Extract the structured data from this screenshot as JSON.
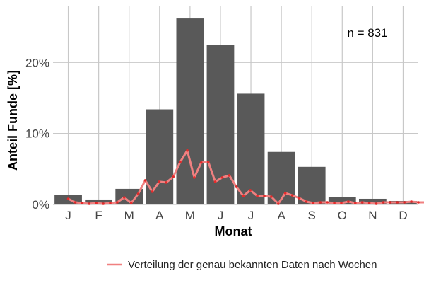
{
  "chart_data": {
    "type": "bar",
    "xlabel": "Monat",
    "ylabel": "Anteil Funde [%]",
    "ylim": [
      0,
      28
    ],
    "yticks": [
      0,
      10,
      20
    ],
    "ytick_labels": [
      "0%",
      "10%",
      "20%"
    ],
    "categories": [
      "J",
      "F",
      "M",
      "A",
      "M",
      "J",
      "J",
      "A",
      "S",
      "O",
      "N",
      "D"
    ],
    "series": [
      {
        "type": "bar",
        "values": [
          1.3,
          0.7,
          2.2,
          13.4,
          26.2,
          22.5,
          15.6,
          7.4,
          5.3,
          1.0,
          0.8,
          0.5
        ]
      },
      {
        "type": "line",
        "name": "Verteilung der genau bekannten Daten nach Wochen",
        "x": [
          0.5,
          0.73,
          0.96,
          1.19,
          1.42,
          1.65,
          1.88,
          2.11,
          2.34,
          2.57,
          2.8,
          3.03,
          3.26,
          3.49,
          3.72,
          3.95,
          4.18,
          4.41,
          4.64,
          4.87,
          5.1,
          5.33,
          5.56,
          5.79,
          6.02,
          6.25,
          6.48,
          6.71,
          6.94,
          7.17,
          7.4,
          7.63,
          7.86,
          8.09,
          8.32,
          8.55,
          8.78,
          9.01,
          9.24,
          9.47,
          9.7,
          9.93,
          10.16,
          10.39,
          10.62,
          10.85,
          11.08,
          11.31,
          11.54,
          11.77,
          12.0,
          12.23
        ],
        "values": [
          0.8,
          0.3,
          0.2,
          0.1,
          0.2,
          0.1,
          0.2,
          0.3,
          1.0,
          0.2,
          1.5,
          3.4,
          1.8,
          3.2,
          3.1,
          3.9,
          6.0,
          7.6,
          3.8,
          5.9,
          6.0,
          3.2,
          3.8,
          4.1,
          2.5,
          1.2,
          2.0,
          1.2,
          1.2,
          1.1,
          0.1,
          1.6,
          1.3,
          0.9,
          0.4,
          0.2,
          0.3,
          0.3,
          0.2,
          0.2,
          0.4,
          0.2,
          0.3,
          0.2,
          0.1,
          0.3,
          0.3,
          0.3,
          0.3,
          0.4,
          0.3,
          0.3
        ]
      }
    ],
    "annotation": "n = 831",
    "grid": true,
    "legend_position": "bottom",
    "colors": {
      "bar": "#595959",
      "line": "#f08080",
      "points": "#e32b2b",
      "grid": "#c8c8c8"
    }
  }
}
